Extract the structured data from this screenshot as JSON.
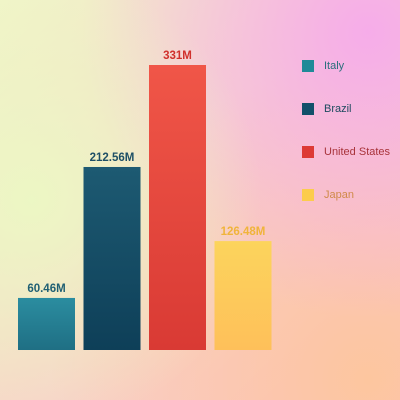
{
  "chart_data": {
    "type": "bar",
    "title": "",
    "xlabel": "",
    "ylabel": "",
    "ylim": [
      0,
      331
    ],
    "grid": false,
    "legend_position": "top-right",
    "categories": [
      "Italy",
      "Brazil",
      "United States",
      "Japan"
    ],
    "values": [
      60.46,
      212.56,
      331,
      126.48
    ],
    "data_labels": [
      "60.46M",
      "212.56M",
      "331M",
      "126.48M"
    ],
    "colors": [
      {
        "top": "#2b8da0",
        "bottom": "#1f6f84"
      },
      {
        "top": "#1d5a72",
        "bottom": "#0e3f58"
      },
      {
        "top": "#f05648",
        "bottom": "#d93a34"
      },
      {
        "top": "#fcd45c",
        "bottom": "#fec05a"
      }
    ],
    "label_colors": [
      "#1f5f73",
      "#1d4f66",
      "#d0302c",
      "#f0b43a"
    ]
  },
  "legend": {
    "items": [
      {
        "label": "Italy",
        "color": "#1f8a98",
        "text_color": "#2a6f7c"
      },
      {
        "label": "Brazil",
        "color": "#12506a",
        "text_color": "#1d4a5e"
      },
      {
        "label": "United States",
        "color": "#dd3a35",
        "text_color": "#a8333a"
      },
      {
        "label": "Japan",
        "color": "#fccc4c",
        "text_color": "#d08a4a"
      }
    ]
  }
}
